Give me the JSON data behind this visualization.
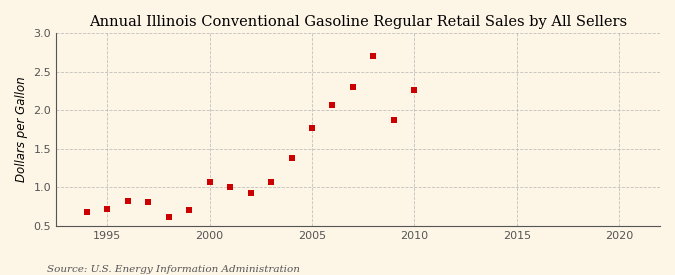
{
  "title": "Annual Illinois Conventional Gasoline Regular Retail Sales by All Sellers",
  "ylabel": "Dollars per Gallon",
  "source": "Source: U.S. Energy Information Administration",
  "background_color": "#fdf5e6",
  "plot_bg_color": "#fdf5e6",
  "marker_color": "#cc0000",
  "xlim": [
    1992.5,
    2022
  ],
  "ylim": [
    0.5,
    3.0
  ],
  "xticks": [
    1995,
    2000,
    2005,
    2010,
    2015,
    2020
  ],
  "yticks": [
    0.5,
    1.0,
    1.5,
    2.0,
    2.5,
    3.0
  ],
  "years": [
    1994,
    1995,
    1996,
    1997,
    1998,
    1999,
    2000,
    2001,
    2002,
    2003,
    2004,
    2005,
    2006,
    2007,
    2008,
    2009,
    2010
  ],
  "values": [
    0.68,
    0.72,
    0.82,
    0.81,
    0.62,
    0.7,
    1.07,
    1.0,
    0.93,
    1.07,
    1.38,
    1.77,
    2.07,
    2.3,
    2.7,
    1.87,
    2.26
  ],
  "title_fontsize": 10.5,
  "label_fontsize": 8.5,
  "tick_fontsize": 8,
  "source_fontsize": 7.5,
  "grid_color": "#aaaaaa",
  "spine_color": "#555555"
}
